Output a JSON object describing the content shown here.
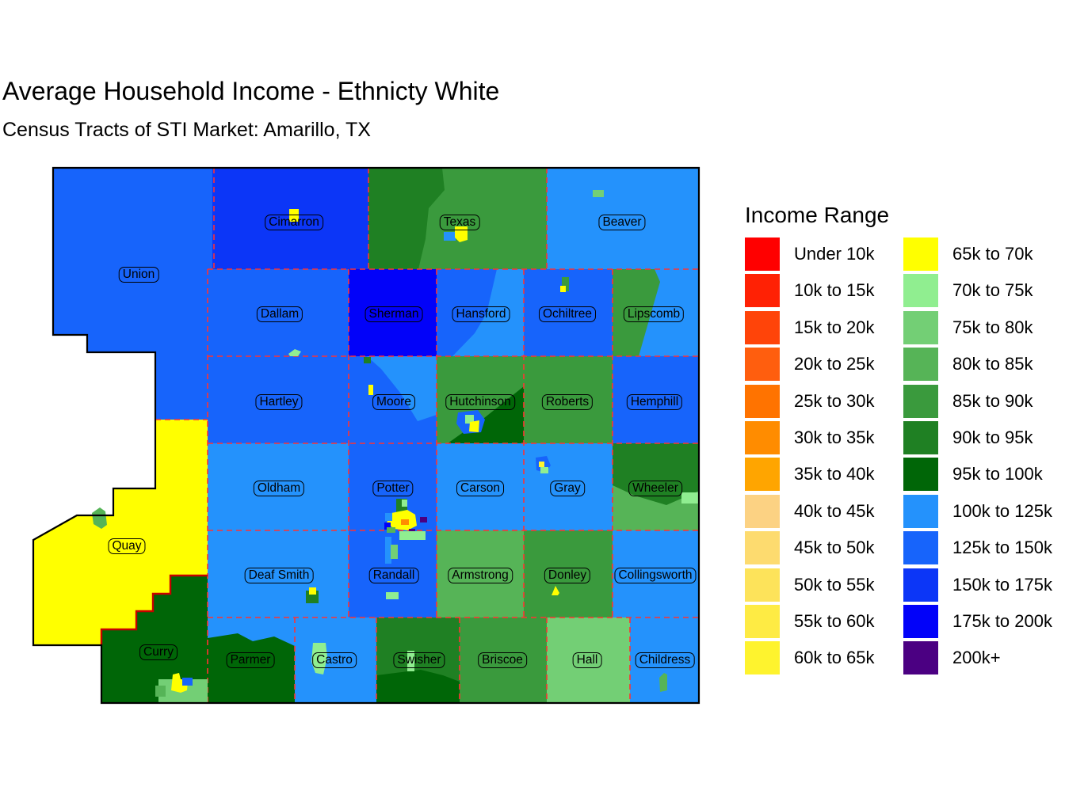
{
  "title": "Average Household Income - Ethnicty White",
  "subtitle": "Census Tracts of STI Market: Amarillo, TX",
  "legend": {
    "title": "Income Range",
    "columns": [
      {
        "items": [
          {
            "label": "Under 10k",
            "color": "#FF0000"
          },
          {
            "label": "10k to 15k",
            "color": "#FF2104"
          },
          {
            "label": "15k to 20k",
            "color": "#FF4409"
          },
          {
            "label": "20k to 25k",
            "color": "#FF5E0E"
          },
          {
            "label": "25k to 30k",
            "color": "#FF7300"
          },
          {
            "label": "30k to 35k",
            "color": "#FF8C00"
          },
          {
            "label": "35k to 40k",
            "color": "#FFA500"
          },
          {
            "label": "40k to 45k",
            "color": "#FCD283"
          },
          {
            "label": "45k to 50k",
            "color": "#FDDB6F"
          },
          {
            "label": "50k to 55k",
            "color": "#FDE35A"
          },
          {
            "label": "55k to 60k",
            "color": "#FEEB44"
          },
          {
            "label": "60k to 65k",
            "color": "#FEF32E"
          }
        ]
      },
      {
        "items": [
          {
            "label": "65k to 70k",
            "color": "#FFFF00"
          },
          {
            "label": "70k to 75k",
            "color": "#90EE90"
          },
          {
            "label": "75k to 80k",
            "color": "#73CF75"
          },
          {
            "label": "80k to 85k",
            "color": "#56B457"
          },
          {
            "label": "85k to 90k",
            "color": "#3A9A3D"
          },
          {
            "label": "90k to 95k",
            "color": "#1F8023"
          },
          {
            "label": "95k to 100k",
            "color": "#006607"
          },
          {
            "label": "100k to 125k",
            "color": "#2492FC"
          },
          {
            "label": "125k to 150k",
            "color": "#1764FB"
          },
          {
            "label": "150k to 175k",
            "color": "#0C36F7"
          },
          {
            "label": "175k to 200k",
            "color": "#0202F9"
          },
          {
            "label": "200k+",
            "color": "#4B0082"
          }
        ]
      }
    ]
  },
  "map": {
    "counties": [
      {
        "name": "Union",
        "fill": "#1764FB",
        "range": "125k to 150k"
      },
      {
        "name": "Cimarron",
        "fill": "#0C36F7",
        "range": "150k to 175k"
      },
      {
        "name": "Texas",
        "fill": "#3A9A3D",
        "range": "85k to 90k"
      },
      {
        "name": "Beaver",
        "fill": "#2492FC",
        "range": "100k to 125k"
      },
      {
        "name": "Dallam",
        "fill": "#1764FB",
        "range": "125k to 150k"
      },
      {
        "name": "Sherman",
        "fill": "#0202F9",
        "range": "175k to 200k"
      },
      {
        "name": "Hansford",
        "fill": "#1764FB",
        "range": "125k to 150k"
      },
      {
        "name": "Ochiltree",
        "fill": "#1764FB",
        "range": "125k to 150k"
      },
      {
        "name": "Lipscomb",
        "fill": "#2492FC",
        "range": "100k to 125k"
      },
      {
        "name": "Hartley",
        "fill": "#1764FB",
        "range": "125k to 150k"
      },
      {
        "name": "Moore",
        "fill": "#1764FB",
        "range": "125k to 150k"
      },
      {
        "name": "Hutchinson",
        "fill": "#3A9A3D",
        "range": "85k to 90k"
      },
      {
        "name": "Roberts",
        "fill": "#3A9A3D",
        "range": "85k to 90k"
      },
      {
        "name": "Hemphill",
        "fill": "#1764FB",
        "range": "125k to 150k"
      },
      {
        "name": "Oldham",
        "fill": "#2492FC",
        "range": "100k to 125k"
      },
      {
        "name": "Potter",
        "fill": "#1764FB",
        "range": "125k to 150k"
      },
      {
        "name": "Carson",
        "fill": "#2492FC",
        "range": "100k to 125k"
      },
      {
        "name": "Gray",
        "fill": "#2492FC",
        "range": "100k to 125k"
      },
      {
        "name": "Wheeler",
        "fill": "#56B457",
        "range": "80k to 85k"
      },
      {
        "name": "Quay",
        "fill": "#FFFF00",
        "range": "65k to 70k"
      },
      {
        "name": "Deaf Smith",
        "fill": "#2492FC",
        "range": "100k to 125k"
      },
      {
        "name": "Randall",
        "fill": "#1764FB",
        "range": "125k to 150k"
      },
      {
        "name": "Armstrong",
        "fill": "#56B457",
        "range": "80k to 85k"
      },
      {
        "name": "Donley",
        "fill": "#3A9A3D",
        "range": "85k to 90k"
      },
      {
        "name": "Collingsworth",
        "fill": "#2492FC",
        "range": "100k to 125k"
      },
      {
        "name": "Curry",
        "fill": "#006607",
        "range": "95k to 100k"
      },
      {
        "name": "Parmer",
        "fill": "#2492FC",
        "range": "100k to 125k"
      },
      {
        "name": "Castro",
        "fill": "#2492FC",
        "range": "100k to 125k"
      },
      {
        "name": "Swisher",
        "fill": "#1F8023",
        "range": "90k to 95k"
      },
      {
        "name": "Briscoe",
        "fill": "#3A9A3D",
        "range": "85k to 90k"
      },
      {
        "name": "Hall",
        "fill": "#73CF75",
        "range": "75k to 80k"
      },
      {
        "name": "Childress",
        "fill": "#2492FC",
        "range": "100k to 125k"
      }
    ],
    "patches": [
      {
        "name": "texas-west-tract",
        "color": "#1F8023"
      },
      {
        "name": "hansford-southeast-tract",
        "color": "#2492FC"
      },
      {
        "name": "lipscomb-west-tract",
        "color": "#3A9A3D"
      },
      {
        "name": "moore-northeast-tract",
        "color": "#2492FC"
      },
      {
        "name": "hutchinson-southeast-tract",
        "color": "#006607"
      },
      {
        "name": "wheeler-north-tract",
        "color": "#1F8023"
      },
      {
        "name": "parmer-south-tract",
        "color": "#006607"
      },
      {
        "name": "swisher-south-tract",
        "color": "#006607"
      },
      {
        "name": "boise-city-tract",
        "color": "#FFFF00"
      },
      {
        "name": "guymon-blue-tract",
        "color": "#2492FC"
      },
      {
        "name": "guymon-yellow-tract",
        "color": "#FFFF00"
      },
      {
        "name": "beaver-town-tract",
        "color": "#73CF75"
      },
      {
        "name": "dalhart-tract",
        "color": "#90EE90"
      },
      {
        "name": "perryton-green-tract",
        "color": "#3A9A3D"
      },
      {
        "name": "perryton-yellow-tract",
        "color": "#FFFF00"
      },
      {
        "name": "dumas-green-tract",
        "color": "#1F8023"
      },
      {
        "name": "dumas-yellow-tract",
        "color": "#FFFF00"
      },
      {
        "name": "borger-blue-tract",
        "color": "#1764FB"
      },
      {
        "name": "borger-lightgreen-tract",
        "color": "#90EE90"
      },
      {
        "name": "borger-yellow-tract",
        "color": "#FFFF00"
      },
      {
        "name": "pampa-blue-tract",
        "color": "#1764FB"
      },
      {
        "name": "pampa-lightgreen-tract",
        "color": "#90EE90"
      },
      {
        "name": "pampa-yellow-tract",
        "color": "#FEF32E"
      },
      {
        "name": "tucumcari-tract",
        "color": "#56B457"
      },
      {
        "name": "hereford-green-tract",
        "color": "#1F8023"
      },
      {
        "name": "hereford-yellow-tract",
        "color": "#FFFF00"
      },
      {
        "name": "clarendon-yellow-tract",
        "color": "#FFFF00"
      },
      {
        "name": "amarillo-darkgreen-tract",
        "color": "#1F8023"
      },
      {
        "name": "amarillo-lightgreen-north-tract",
        "color": "#90EE90"
      },
      {
        "name": "amarillo-yellow-tract",
        "color": "#FFFF00"
      },
      {
        "name": "amarillo-orange-tract",
        "color": "#FF8C00"
      },
      {
        "name": "amarillo-lightblue-tract",
        "color": "#2492FC"
      },
      {
        "name": "amarillo-darkblue-tract",
        "color": "#0202F9"
      },
      {
        "name": "amarillo-purple-east-tract",
        "color": "#4B0082"
      },
      {
        "name": "amarillo-purple-south-tract",
        "color": "#4B0082"
      },
      {
        "name": "amarillo-green-west-tract",
        "color": "#56B457"
      },
      {
        "name": "amarillo-south-lightgreen-bar-tract",
        "color": "#90EE90"
      },
      {
        "name": "randall-lightblue-bar-tract",
        "color": "#2492FC"
      },
      {
        "name": "randall-green-tract",
        "color": "#73CF75"
      },
      {
        "name": "canyon-tract",
        "color": "#90EE90"
      },
      {
        "name": "clovis-base-tract",
        "color": "#73CF75"
      },
      {
        "name": "clovis-yellow-tract",
        "color": "#FFFF00"
      },
      {
        "name": "clovis-blue-tract",
        "color": "#1764FB"
      },
      {
        "name": "clovis-green-tract",
        "color": "#56B457"
      },
      {
        "name": "dimmitt-tract",
        "color": "#90EE90"
      },
      {
        "name": "tulia-tract",
        "color": "#90EE90"
      },
      {
        "name": "childress-city-tract",
        "color": "#56B457"
      },
      {
        "name": "wheeler-east-sliver-tract",
        "color": "#90EE90"
      }
    ]
  }
}
